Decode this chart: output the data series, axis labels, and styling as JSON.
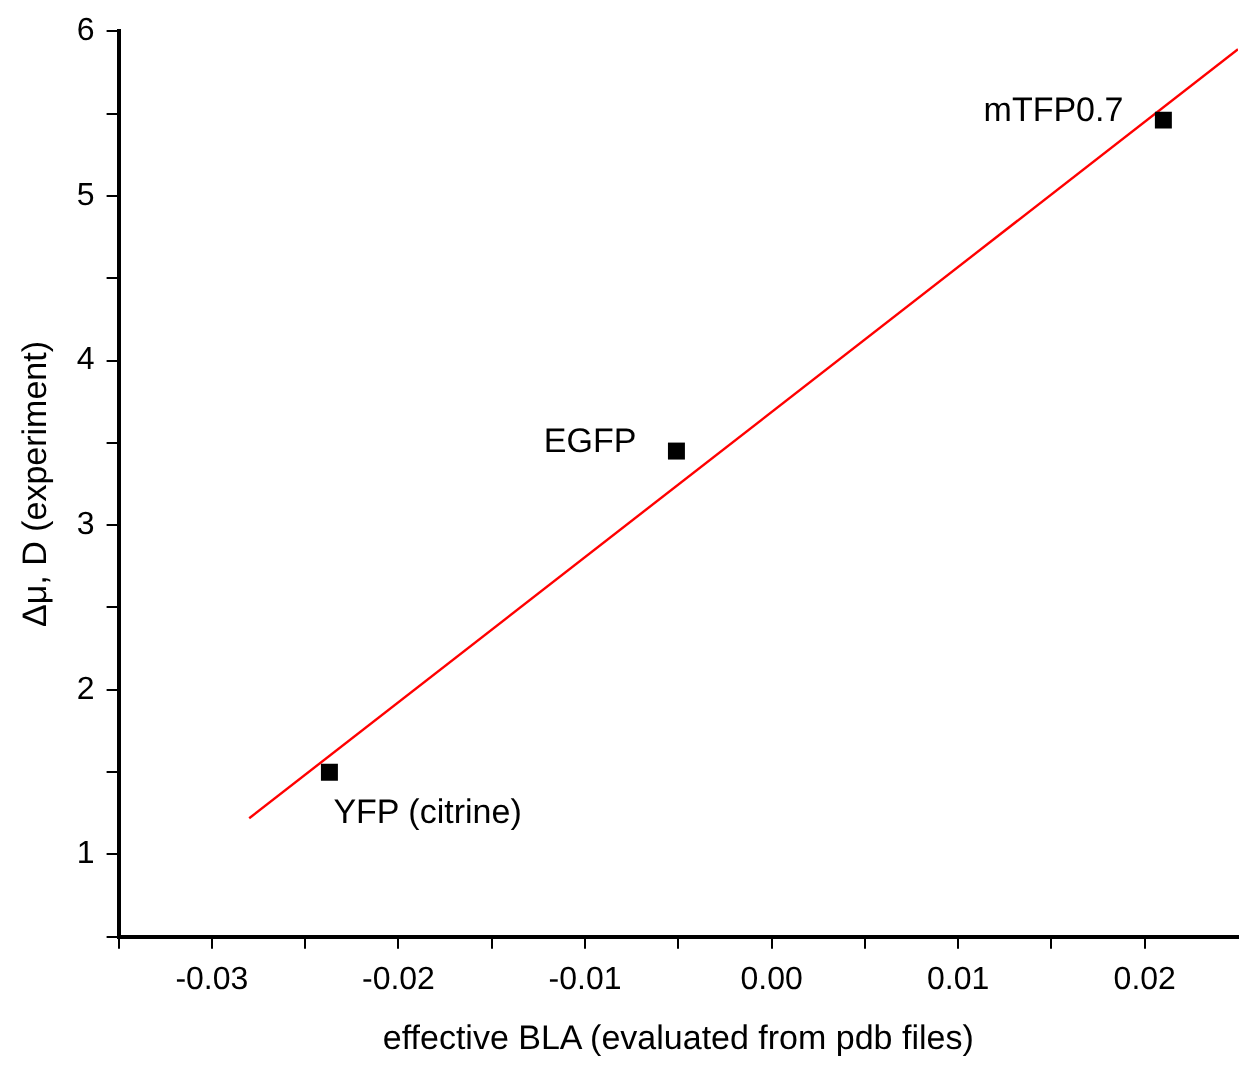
{
  "chart_data": {
    "type": "scatter",
    "xlabel": "effective BLA (evaluated from pdb files)",
    "ylabel": "Δμ, D (experiment)",
    "xlim": [
      -0.035,
      0.025
    ],
    "ylim": [
      0.5,
      6
    ],
    "xticks": [
      {
        "value": -0.035,
        "label": null
      },
      -0.03,
      {
        "value": -0.025,
        "label": null
      },
      -0.02,
      {
        "value": -0.015,
        "label": null
      },
      -0.01,
      {
        "value": -0.005,
        "label": null
      },
      {
        "value": 0,
        "label": "0.00"
      },
      {
        "value": 0.005,
        "label": null
      },
      0.01,
      {
        "value": 0.015,
        "label": null
      },
      0.02
    ],
    "yticks": [
      {
        "value": 0.5,
        "label": null
      },
      1,
      {
        "value": 1.5,
        "label": null
      },
      2,
      {
        "value": 2.5,
        "label": null
      },
      3,
      {
        "value": 3.5,
        "label": null
      },
      4,
      {
        "value": 4.5,
        "label": null
      },
      5,
      {
        "value": 5.5,
        "label": null
      },
      6
    ],
    "grid": false,
    "legend": false,
    "series": [
      {
        "marker": "square",
        "color": "#000000",
        "x": [
          -0.0237,
          -0.0051,
          0.021
        ],
        "values": [
          1.5,
          3.45,
          5.46
        ]
      },
      {
        "type": "line",
        "marker": "none",
        "color": "#ff0000",
        "x": [
          -0.028,
          0.025
        ],
        "values": [
          1.22,
          5.89
        ]
      }
    ],
    "annotations": [
      {
        "text": "mTFP0.7",
        "x": 0.021,
        "y": 5.46
      },
      {
        "text": "EGFP",
        "x": -0.0051,
        "y": 3.45
      },
      {
        "text": "YFP (citrine)",
        "x": -0.0237,
        "y": 1.5
      }
    ]
  }
}
